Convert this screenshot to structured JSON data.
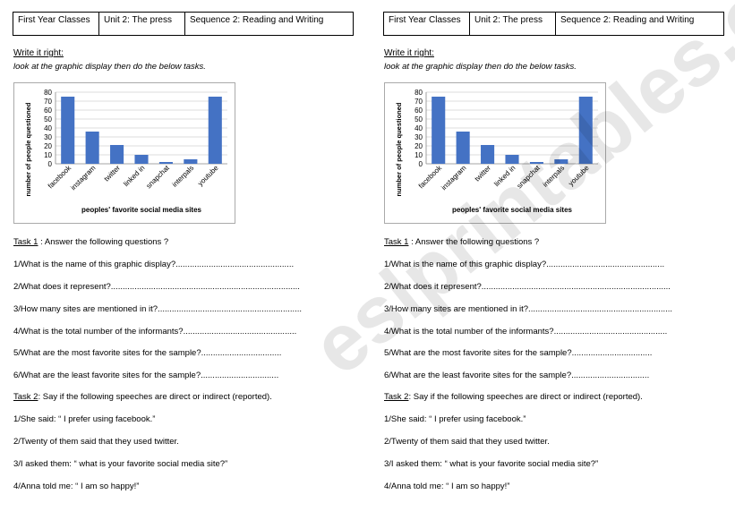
{
  "header": {
    "class_label": "First Year Classes",
    "unit_label": "Unit 2: The press",
    "sequence_label": "Sequence 2: Reading and Writing"
  },
  "section_title": "Write it right:",
  "instruction": "look at the graphic display then  do the below tasks.",
  "chart_data": {
    "type": "bar",
    "categories": [
      "facebook",
      "instagram",
      "twitter",
      "linked in",
      "snapchat",
      "interpals",
      "youtube"
    ],
    "values": [
      75,
      36,
      21,
      10,
      2,
      5,
      75
    ],
    "xlabel": "peoples' favorite social media sites",
    "ylabel": "number of people questioned",
    "ylim": [
      0,
      80
    ],
    "yticks": [
      0,
      10,
      20,
      30,
      40,
      50,
      60,
      70,
      80
    ],
    "grid": true,
    "bar_color": "#4472C4"
  },
  "task1": {
    "heading_label": "Task 1",
    "heading_rest": " : Answer the following questions ?",
    "questions": [
      "1/What is the name of this graphic display?..................................................",
      "2/What does it represent?................................................................................",
      "3/How many sites are mentioned in it?.............................................................",
      "4/What is the total number of the informants?................................................",
      "5/What are the most favorite sites for the sample?..................................",
      "6/What are the least favorite sites for the sample?................................."
    ]
  },
  "task2": {
    "heading_label": "Task 2",
    "heading_rest": ": Say if the following speeches are direct or indirect (reported).",
    "sentences": [
      "1/She said: “ I prefer using facebook.”",
      "2/Twenty of them said that they used twitter.",
      "3/I asked them: “ what is your favorite social media site?”",
      "4/Anna told me: “ I am so happy!”"
    ]
  },
  "watermark": "eslprintables.com"
}
